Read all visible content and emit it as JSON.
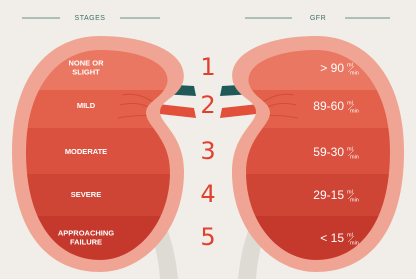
{
  "header": {
    "left": "STAGES",
    "right": "GFR"
  },
  "unit": {
    "top": "ml",
    "bottom": "min"
  },
  "stages": [
    {
      "number": "1",
      "name": [
        "NONE OR",
        "SLIGHT"
      ],
      "gfr": "> 90"
    },
    {
      "number": "2",
      "name": [
        "MILD"
      ],
      "gfr": "89-60"
    },
    {
      "number": "3",
      "name": [
        "MODERATE"
      ],
      "gfr": "59-30"
    },
    {
      "number": "4",
      "name": [
        "SEVERE"
      ],
      "gfr": "29-15"
    },
    {
      "number": "5",
      "name": [
        "APPROACHING",
        "FAILURE"
      ],
      "gfr": "< 15"
    }
  ]
}
